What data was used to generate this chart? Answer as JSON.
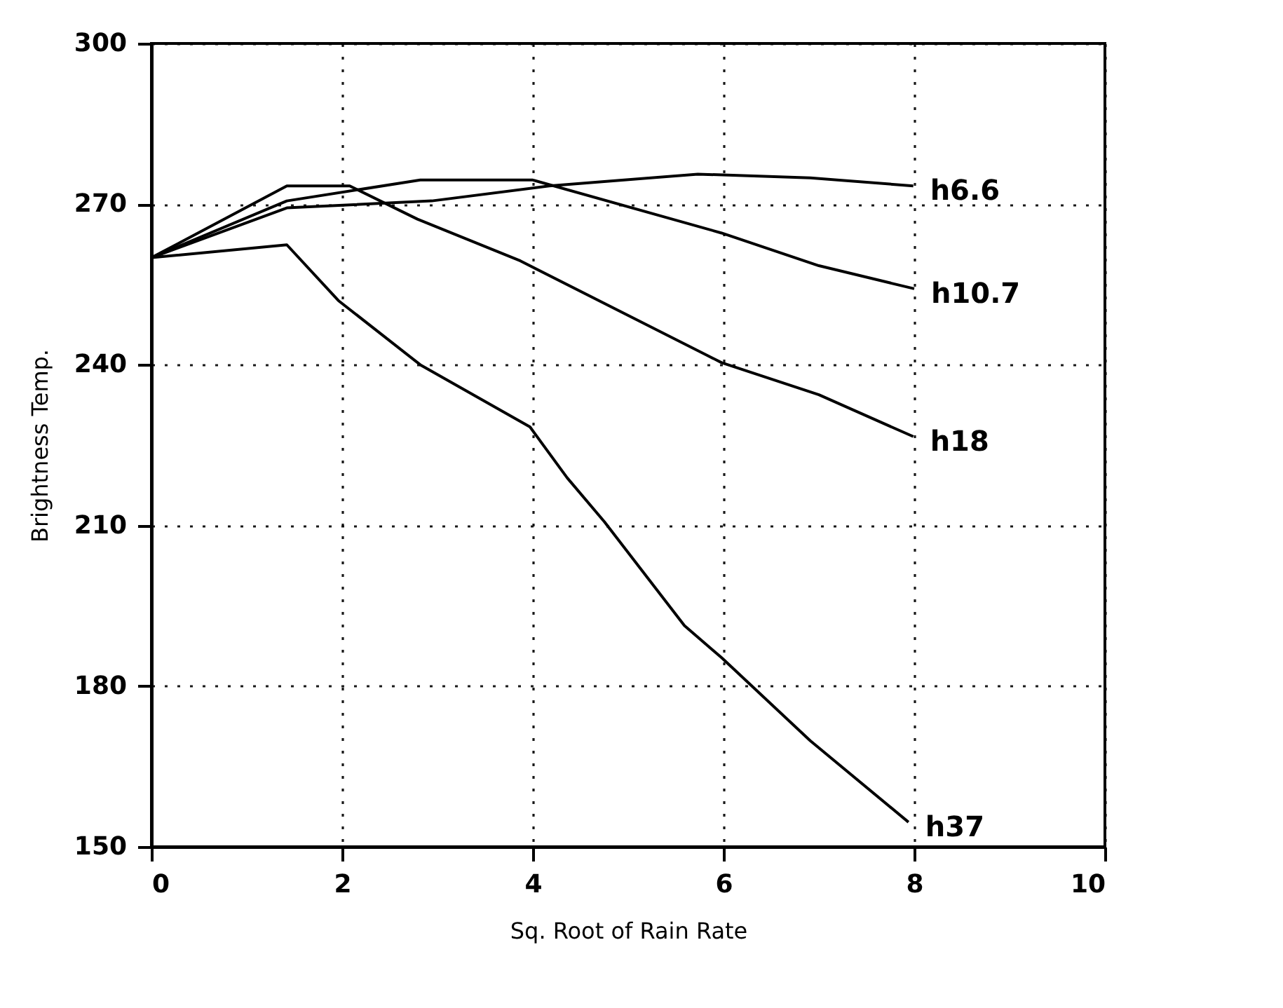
{
  "chart_data": {
    "type": "line",
    "xlabel": "Sq. Root of Rain Rate",
    "ylabel": "Brightness Temp.",
    "xlim": [
      0,
      10
    ],
    "ylim": [
      150,
      300
    ],
    "xticks": [
      0,
      2,
      4,
      6,
      8,
      10
    ],
    "yticks": [
      150,
      180,
      210,
      240,
      270,
      300
    ],
    "grid": true,
    "legend": false,
    "series": [
      {
        "name": "h6.6",
        "color": "#000000",
        "x": [
          0,
          1.42,
          2.94,
          4.17,
          5.73,
          6.91,
          7.99
        ],
        "values": [
          260,
          269.3,
          270.6,
          273.4,
          275.6,
          274.9,
          273.4
        ]
      },
      {
        "name": "h10.7",
        "color": "#000000",
        "x": [
          0,
          1.42,
          2.82,
          4.0,
          5.98,
          7.0,
          8.0
        ],
        "values": [
          260,
          270.6,
          274.5,
          274.5,
          264.6,
          258.5,
          254.2
        ]
      },
      {
        "name": "h18",
        "color": "#000000",
        "x": [
          0,
          1.42,
          2.08,
          2.79,
          3.87,
          5.98,
          7.0,
          7.99
        ],
        "values": [
          260,
          273.4,
          273.4,
          267.2,
          259.4,
          240.4,
          234.4,
          226.6
        ]
      },
      {
        "name": "h37",
        "color": "#000000",
        "x": [
          0,
          1.42,
          1.96,
          2.82,
          3.97,
          4.36,
          4.75,
          5.59,
          5.98,
          6.91,
          7.94
        ],
        "values": [
          260,
          262.4,
          252,
          240,
          228.4,
          218.9,
          210.7,
          191.3,
          185.3,
          169.8,
          154.6
        ]
      }
    ]
  }
}
